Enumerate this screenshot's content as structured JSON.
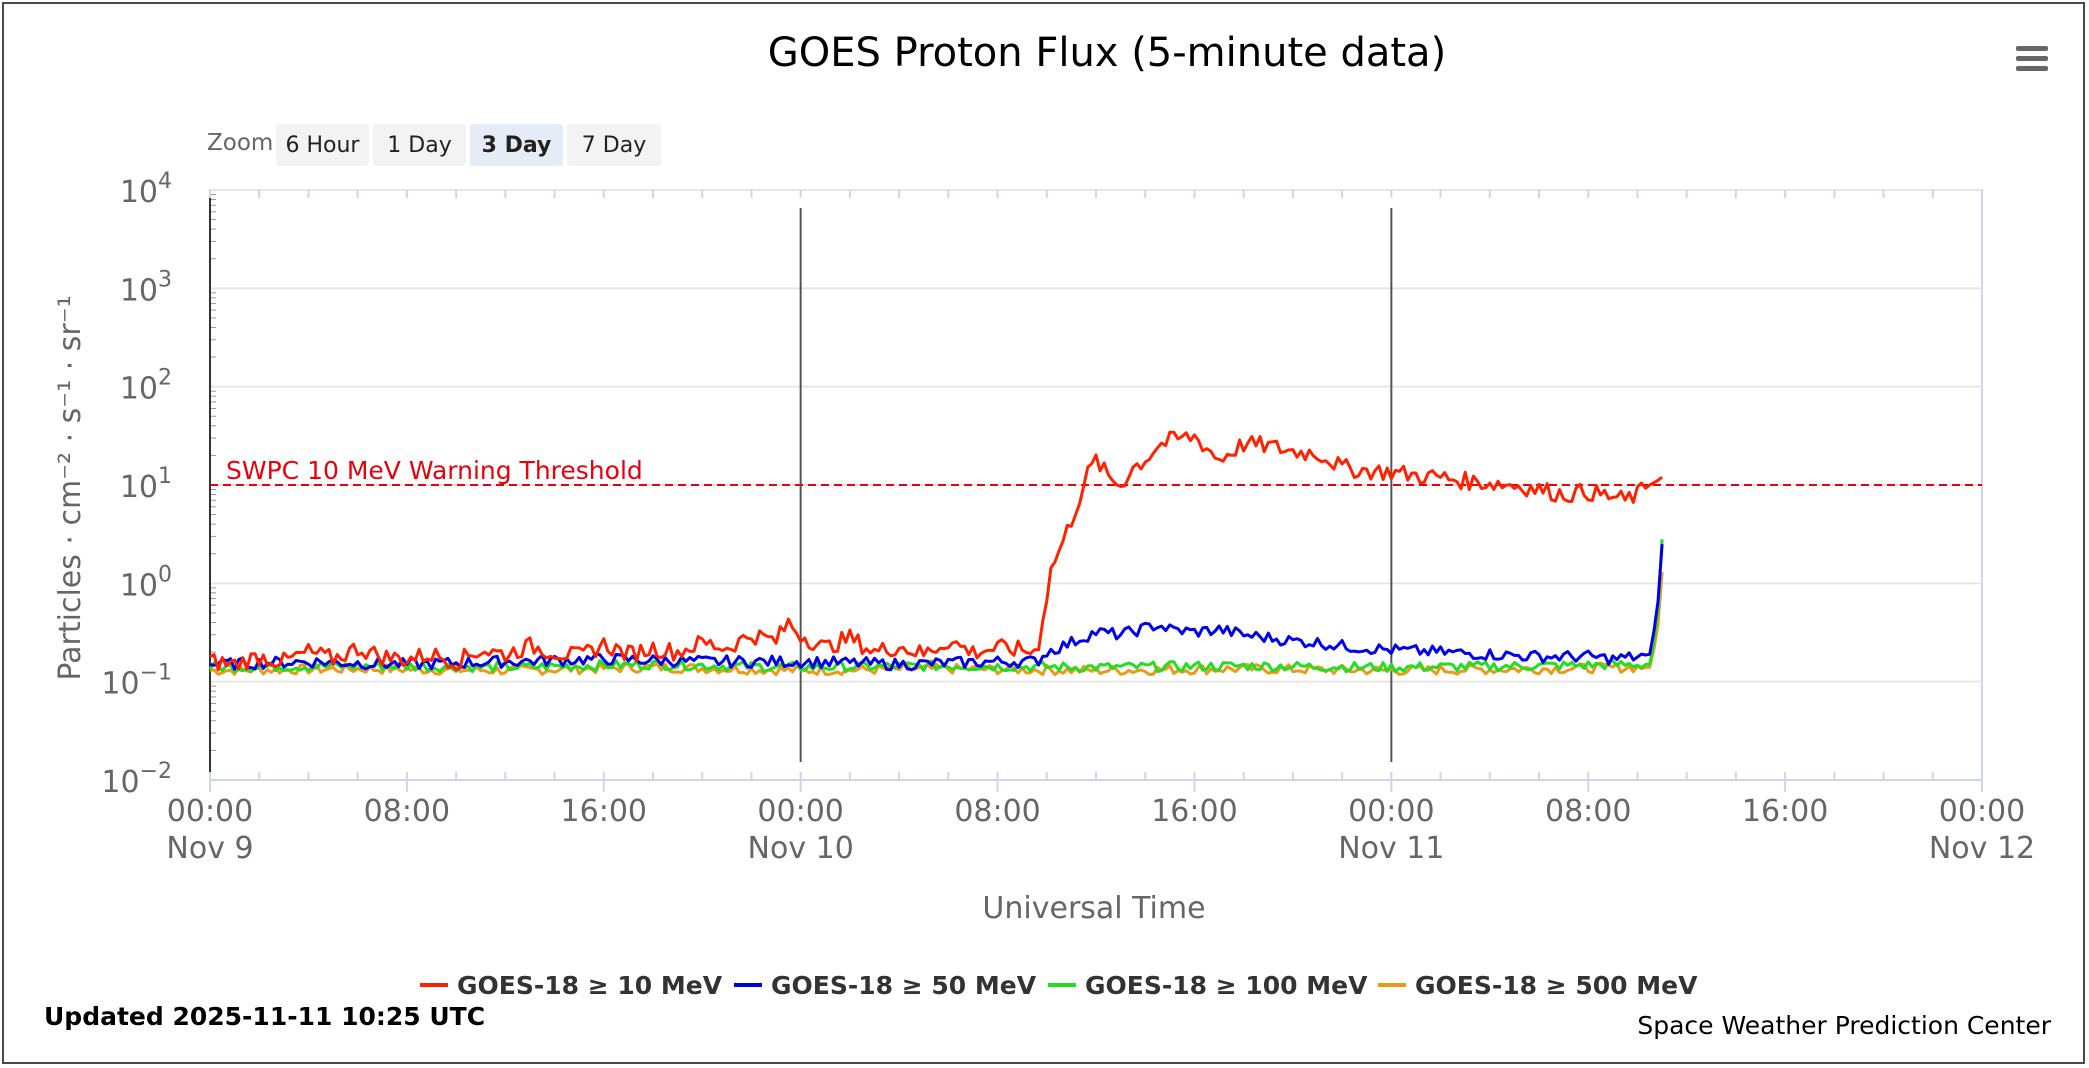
{
  "chart_data": {
    "type": "line",
    "title": "GOES Proton Flux (5-minute data)",
    "xlabel": "Universal Time",
    "ylabel": "Particles · cm⁻² · s⁻¹ · sr⁻¹",
    "yscale": "log",
    "ylim": [
      0.01,
      10000
    ],
    "y_ticks": [
      {
        "base": "10",
        "exp": "−2",
        "value": 0.01
      },
      {
        "base": "10",
        "exp": "−1",
        "value": 0.1
      },
      {
        "base": "10",
        "exp": "0",
        "value": 1
      },
      {
        "base": "10",
        "exp": "1",
        "value": 10
      },
      {
        "base": "10",
        "exp": "2",
        "value": 100
      },
      {
        "base": "10",
        "exp": "3",
        "value": 1000
      },
      {
        "base": "10",
        "exp": "4",
        "value": 10000
      }
    ],
    "xlim_hours": [
      0,
      72
    ],
    "x_ticks": [
      {
        "hour": 0,
        "time": "00:00",
        "date": "Nov 9"
      },
      {
        "hour": 8,
        "time": "08:00",
        "date": ""
      },
      {
        "hour": 16,
        "time": "16:00",
        "date": ""
      },
      {
        "hour": 24,
        "time": "00:00",
        "date": "Nov 10"
      },
      {
        "hour": 32,
        "time": "08:00",
        "date": ""
      },
      {
        "hour": 40,
        "time": "16:00",
        "date": ""
      },
      {
        "hour": 48,
        "time": "00:00",
        "date": "Nov 11"
      },
      {
        "hour": 56,
        "time": "08:00",
        "date": ""
      },
      {
        "hour": 64,
        "time": "16:00",
        "date": ""
      },
      {
        "hour": 72,
        "time": "00:00",
        "date": "Nov 12"
      }
    ],
    "day_lines_hours": [
      24,
      48
    ],
    "threshold": {
      "value": 10,
      "label": "SWPC 10 MeV Warning Threshold",
      "color": "#e8000b"
    },
    "series": [
      {
        "name": "GOES-18 ≥ 10 MeV",
        "color": "#ff2200",
        "points": [
          [
            0,
            0.16
          ],
          [
            1,
            0.15
          ],
          [
            2,
            0.18
          ],
          [
            3,
            0.16
          ],
          [
            4,
            0.2
          ],
          [
            5,
            0.17
          ],
          [
            6,
            0.22
          ],
          [
            7,
            0.18
          ],
          [
            8,
            0.17
          ],
          [
            9,
            0.19
          ],
          [
            10,
            0.16
          ],
          [
            11,
            0.21
          ],
          [
            12,
            0.19
          ],
          [
            13,
            0.23
          ],
          [
            14,
            0.2
          ],
          [
            15,
            0.18
          ],
          [
            16,
            0.24
          ],
          [
            17,
            0.19
          ],
          [
            18,
            0.22
          ],
          [
            19,
            0.2
          ],
          [
            20,
            0.25
          ],
          [
            21,
            0.22
          ],
          [
            22,
            0.3
          ],
          [
            23,
            0.26
          ],
          [
            23.5,
            0.4
          ],
          [
            24,
            0.3
          ],
          [
            25,
            0.22
          ],
          [
            26,
            0.28
          ],
          [
            27,
            0.2
          ],
          [
            28,
            0.23
          ],
          [
            29,
            0.19
          ],
          [
            30,
            0.26
          ],
          [
            31,
            0.2
          ],
          [
            32,
            0.22
          ],
          [
            33,
            0.21
          ],
          [
            33.6,
            0.2
          ],
          [
            34.2,
            1.5
          ],
          [
            34.6,
            2.4
          ],
          [
            35.2,
            6
          ],
          [
            35.6,
            12
          ],
          [
            36,
            18
          ],
          [
            36.5,
            12
          ],
          [
            37,
            10
          ],
          [
            37.5,
            15
          ],
          [
            38,
            18
          ],
          [
            38.5,
            25
          ],
          [
            39,
            28
          ],
          [
            39.5,
            30
          ],
          [
            40,
            31
          ],
          [
            40.5,
            24
          ],
          [
            41,
            18
          ],
          [
            41.5,
            22
          ],
          [
            42,
            26
          ],
          [
            43,
            25
          ],
          [
            44,
            22
          ],
          [
            45,
            21
          ],
          [
            45.5,
            18
          ],
          [
            46,
            15
          ],
          [
            47,
            14
          ],
          [
            48,
            13.5
          ],
          [
            49,
            12.5
          ],
          [
            50,
            12
          ],
          [
            51,
            11
          ],
          [
            52,
            10.5
          ],
          [
            53,
            10
          ],
          [
            54,
            9
          ],
          [
            55,
            8
          ],
          [
            56,
            8.5
          ],
          [
            57,
            7.5
          ],
          [
            57.5,
            7
          ],
          [
            58,
            8
          ],
          [
            58.5,
            10
          ],
          [
            58.8,
            11
          ],
          [
            59,
            12
          ]
        ]
      },
      {
        "name": "GOES-18 ≥ 50 MeV",
        "color": "#0000e8",
        "points": [
          [
            0,
            0.15
          ],
          [
            4,
            0.16
          ],
          [
            8,
            0.15
          ],
          [
            12,
            0.16
          ],
          [
            16,
            0.17
          ],
          [
            20,
            0.16
          ],
          [
            24,
            0.16
          ],
          [
            28,
            0.15
          ],
          [
            32,
            0.16
          ],
          [
            33.6,
            0.16
          ],
          [
            34,
            0.2
          ],
          [
            35,
            0.25
          ],
          [
            36,
            0.32
          ],
          [
            37,
            0.3
          ],
          [
            38,
            0.35
          ],
          [
            38.5,
            0.38
          ],
          [
            39,
            0.34
          ],
          [
            40,
            0.32
          ],
          [
            41,
            0.34
          ],
          [
            42,
            0.3
          ],
          [
            43,
            0.28
          ],
          [
            44,
            0.26
          ],
          [
            45,
            0.25
          ],
          [
            46,
            0.23
          ],
          [
            47,
            0.22
          ],
          [
            48,
            0.21
          ],
          [
            50,
            0.2
          ],
          [
            52,
            0.19
          ],
          [
            54,
            0.18
          ],
          [
            56,
            0.18
          ],
          [
            57,
            0.17
          ],
          [
            58,
            0.18
          ],
          [
            58.5,
            0.19
          ],
          [
            58.8,
            0.5
          ],
          [
            59,
            2.5
          ]
        ]
      },
      {
        "name": "GOES-18 ≥ 100 MeV",
        "color": "#22dd22",
        "points": [
          [
            0,
            0.14
          ],
          [
            6,
            0.145
          ],
          [
            12,
            0.14
          ],
          [
            18,
            0.15
          ],
          [
            24,
            0.14
          ],
          [
            30,
            0.145
          ],
          [
            36,
            0.14
          ],
          [
            42,
            0.145
          ],
          [
            48,
            0.14
          ],
          [
            54,
            0.145
          ],
          [
            58.5,
            0.15
          ],
          [
            58.8,
            0.4
          ],
          [
            59,
            2.8
          ]
        ]
      },
      {
        "name": "GOES-18 ≥ 500 MeV",
        "color": "#e89a1a",
        "points": [
          [
            0,
            0.13
          ],
          [
            6,
            0.135
          ],
          [
            12,
            0.13
          ],
          [
            18,
            0.14
          ],
          [
            24,
            0.13
          ],
          [
            30,
            0.135
          ],
          [
            36,
            0.13
          ],
          [
            42,
            0.135
          ],
          [
            48,
            0.13
          ],
          [
            54,
            0.135
          ],
          [
            58.5,
            0.14
          ],
          [
            58.8,
            0.3
          ],
          [
            59,
            1.3
          ]
        ]
      }
    ]
  },
  "zoom": {
    "label": "Zoom",
    "buttons": [
      "6 Hour",
      "1 Day",
      "3 Day",
      "7 Day"
    ],
    "active": "3 Day"
  },
  "footer": {
    "updated": "Updated 2025-11-11 10:25 UTC",
    "credit": "Space Weather Prediction Center"
  }
}
